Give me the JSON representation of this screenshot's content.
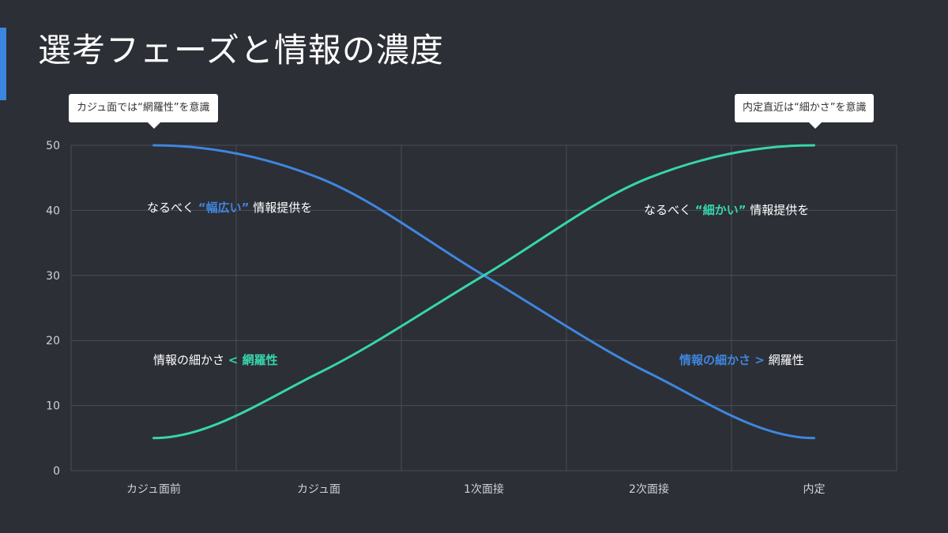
{
  "title": "選考フェーズと情報の濃度",
  "callouts": {
    "left": "カジュ面では“網羅性”を意識",
    "right": "内定直近は“細かさ”を意識"
  },
  "annotations": {
    "top_left": {
      "pre": "なるべく ",
      "hl": "“幅広い”",
      "post": " 情報提供を"
    },
    "top_right": {
      "pre": "なるべく ",
      "hl": "“細かい”",
      "post": " 情報提供を"
    },
    "bottom_left": {
      "pre": "情報の細かさ ",
      "hl": "< 網羅性",
      "post": ""
    },
    "bottom_right": {
      "pre": "",
      "hl": "情報の細かさ >",
      "post": " 網羅性"
    }
  },
  "colors": {
    "background": "#2c2f36",
    "accent": "#3a86e0",
    "series_blue": "#3f86de",
    "series_teal": "#36d6ad",
    "grid": "#4a4e57",
    "axis_text": "#d0d2d6"
  },
  "chart_data": {
    "type": "line",
    "categories": [
      "カジュ面前",
      "カジュ面",
      "1次面接",
      "2次面接",
      "内定"
    ],
    "ylim": [
      0,
      50
    ],
    "yticks": [
      0,
      10,
      20,
      30,
      40,
      50
    ],
    "grid": true,
    "smooth": true,
    "series": [
      {
        "color": "#3f86de",
        "values": [
          50,
          45,
          30,
          15,
          5
        ]
      },
      {
        "color": "#36d6ad",
        "values": [
          5,
          15,
          30,
          45,
          50
        ]
      }
    ]
  }
}
